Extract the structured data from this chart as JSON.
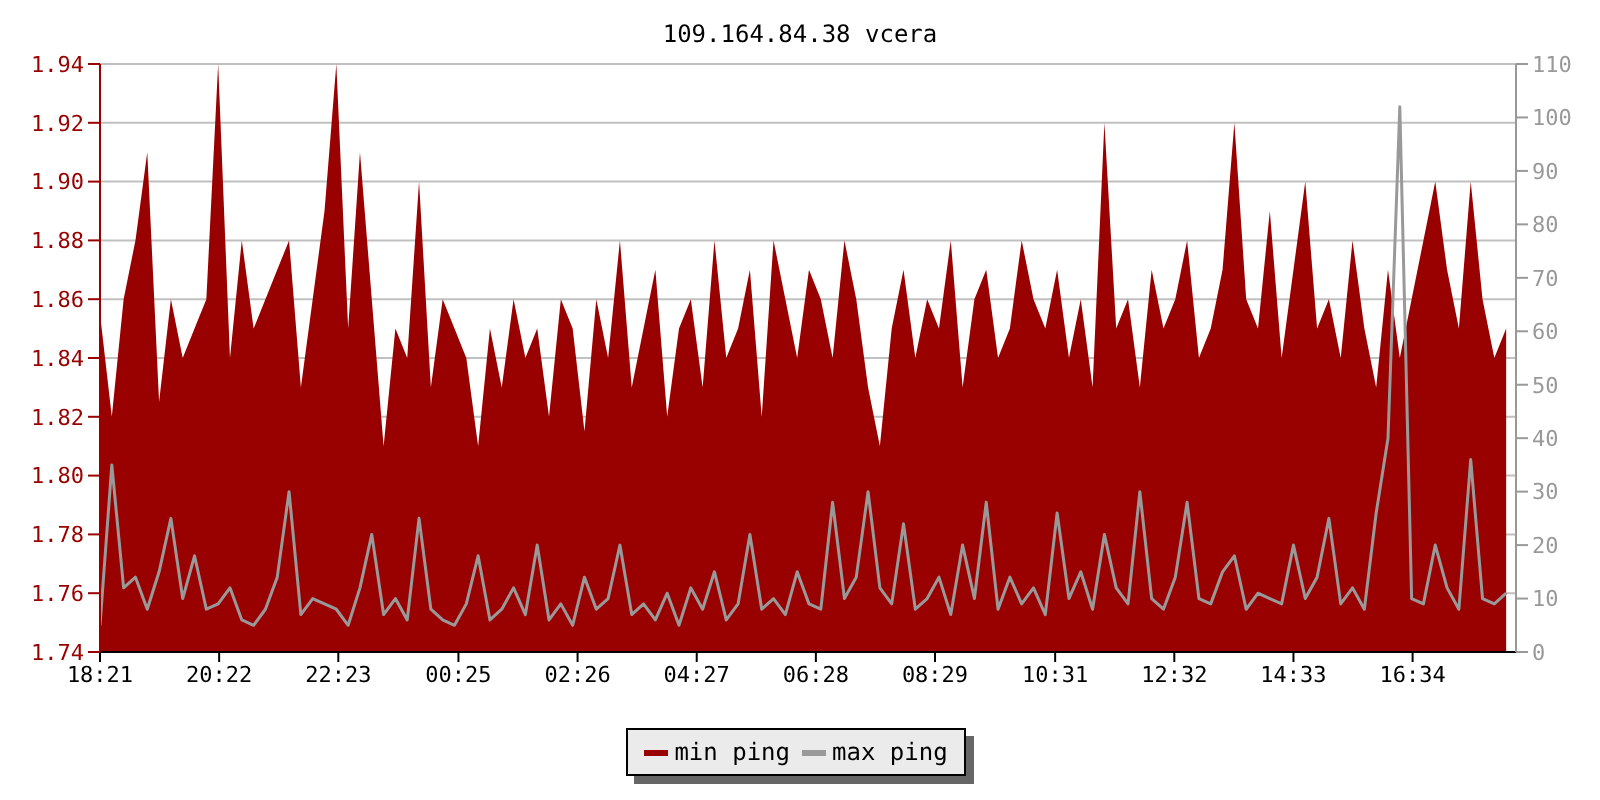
{
  "chart_data": {
    "type": "area",
    "title": "109.164.84.38 vcera",
    "x": [
      "--01-01T18:21",
      "--01-01T18:33",
      "--01-01T18:45",
      "--01-01T18:57",
      "--01-01T19:09",
      "--01-01T19:21",
      "--01-01T19:33",
      "--01-01T19:45",
      "--01-01T19:57",
      "--01-01T20:09",
      "--01-01T20:21",
      "--01-01T20:33",
      "--01-01T20:45",
      "--01-01T20:57",
      "--01-01T21:09",
      "--01-01T21:21",
      "--01-01T21:33",
      "--01-01T21:45",
      "--01-01T21:57",
      "--01-01T22:09",
      "--01-01T22:21",
      "--01-01T22:33",
      "--01-01T22:45",
      "--01-01T22:57",
      "--01-01T23:09",
      "--01-01T23:21",
      "--01-01T23:33",
      "--01-01T23:45",
      "--01-01T23:57",
      "--01-02T00:09",
      "--01-02T00:21",
      "--01-02T00:33",
      "--01-02T00:45",
      "--01-02T00:57",
      "--01-02T01:09",
      "--01-02T01:21",
      "--01-02T01:33",
      "--01-02T01:45",
      "--01-02T01:57",
      "--01-02T02:09",
      "--01-02T02:21",
      "--01-02T02:33",
      "--01-02T02:45",
      "--01-02T02:57",
      "--01-02T03:09",
      "--01-02T03:21",
      "--01-02T03:33",
      "--01-02T03:45",
      "--01-02T03:57",
      "--01-02T04:09",
      "--01-02T04:21",
      "--01-02T04:33",
      "--01-02T04:45",
      "--01-02T04:57",
      "--01-02T05:09",
      "--01-02T05:21",
      "--01-02T05:33",
      "--01-02T05:45",
      "--01-02T05:57",
      "--01-02T06:09",
      "--01-02T06:21",
      "--01-02T06:33",
      "--01-02T06:45",
      "--01-02T06:57",
      "--01-02T07:09",
      "--01-02T07:21",
      "--01-02T07:33",
      "--01-02T07:45",
      "--01-02T07:57",
      "--01-02T08:09",
      "--01-02T08:21",
      "--01-02T08:33",
      "--01-02T08:45",
      "--01-02T08:57",
      "--01-02T09:09",
      "--01-02T09:21",
      "--01-02T09:33",
      "--01-02T09:45",
      "--01-02T09:57",
      "--01-02T10:09",
      "--01-02T10:21",
      "--01-02T10:33",
      "--01-02T10:45",
      "--01-02T10:57",
      "--01-02T11:09",
      "--01-02T11:21",
      "--01-02T11:33",
      "--01-02T11:45",
      "--01-02T11:57",
      "--01-02T12:09",
      "--01-02T12:21",
      "--01-02T12:33",
      "--01-02T12:45",
      "--01-02T12:57",
      "--01-02T13:09",
      "--01-02T13:21",
      "--01-02T13:33",
      "--01-02T13:45",
      "--01-02T13:57",
      "--01-02T14:09",
      "--01-02T14:21",
      "--01-02T14:33",
      "--01-02T14:45",
      "--01-02T14:57",
      "--01-02T15:09",
      "--01-02T15:21",
      "--01-02T15:33",
      "--01-02T15:45",
      "--01-02T15:57",
      "--01-02T16:09",
      "--01-02T16:21",
      "--01-02T16:33",
      "--01-02T16:45",
      "--01-02T16:57",
      "--01-02T17:09",
      "--01-02T17:21",
      "--01-02T17:33",
      "--01-02T17:45",
      "--01-02T17:57",
      "--01-02T18:09"
    ],
    "series": [
      {
        "name": "min ping",
        "color": "#990000",
        "values": [
          1.855,
          1.82,
          1.86,
          1.88,
          1.91,
          1.825,
          1.86,
          1.84,
          1.85,
          1.86,
          1.94,
          1.84,
          1.88,
          1.85,
          1.86,
          1.87,
          1.88,
          1.83,
          1.86,
          1.89,
          1.94,
          1.85,
          1.91,
          1.86,
          1.81,
          1.85,
          1.84,
          1.9,
          1.83,
          1.86,
          1.85,
          1.84,
          1.81,
          1.85,
          1.83,
          1.86,
          1.84,
          1.85,
          1.82,
          1.86,
          1.85,
          1.815,
          1.86,
          1.84,
          1.88,
          1.83,
          1.85,
          1.87,
          1.82,
          1.85,
          1.86,
          1.83,
          1.88,
          1.84,
          1.85,
          1.87,
          1.82,
          1.88,
          1.86,
          1.84,
          1.87,
          1.86,
          1.84,
          1.88,
          1.86,
          1.83,
          1.81,
          1.85,
          1.87,
          1.84,
          1.86,
          1.85,
          1.88,
          1.83,
          1.86,
          1.87,
          1.84,
          1.85,
          1.88,
          1.86,
          1.85,
          1.87,
          1.84,
          1.86,
          1.83,
          1.92,
          1.85,
          1.86,
          1.83,
          1.87,
          1.85,
          1.86,
          1.88,
          1.84,
          1.85,
          1.87,
          1.92,
          1.86,
          1.85,
          1.89,
          1.84,
          1.87,
          1.9,
          1.85,
          1.86,
          1.84,
          1.88,
          1.85,
          1.83,
          1.87,
          1.84,
          1.86,
          1.88,
          1.9,
          1.87,
          1.85,
          1.9,
          1.86,
          1.84,
          1.85
        ]
      },
      {
        "name": "max ping",
        "type": "line",
        "axis": "y2",
        "color": "#999999",
        "values": [
          5,
          35,
          12,
          14,
          8,
          15,
          25,
          10,
          18,
          8,
          9,
          12,
          6,
          5,
          8,
          14,
          30,
          7,
          10,
          9,
          8,
          5,
          12,
          22,
          7,
          10,
          6,
          25,
          8,
          6,
          5,
          9,
          18,
          6,
          8,
          12,
          7,
          20,
          6,
          9,
          5,
          14,
          8,
          10,
          20,
          7,
          9,
          6,
          11,
          5,
          12,
          8,
          15,
          6,
          9,
          22,
          8,
          10,
          7,
          15,
          9,
          8,
          28,
          10,
          14,
          30,
          12,
          9,
          24,
          8,
          10,
          14,
          7,
          20,
          10,
          28,
          8,
          14,
          9,
          12,
          7,
          26,
          10,
          15,
          8,
          22,
          12,
          9,
          30,
          10,
          8,
          14,
          28,
          10,
          9,
          15,
          18,
          8,
          11,
          10,
          9,
          20,
          10,
          14,
          25,
          9,
          12,
          8,
          26,
          40,
          102,
          10,
          9,
          20,
          12,
          8,
          36,
          10,
          9,
          11
        ]
      }
    ],
    "xlim": [
      "--01-01T18:21",
      "--01-02T18:19"
    ],
    "xticks": [
      {
        "value": "--01-01T18:21",
        "label": "18:21"
      },
      {
        "value": "--01-01T20:22",
        "label": "20:22"
      },
      {
        "value": "--01-01T22:23",
        "label": "22:23"
      },
      {
        "value": "--01-02T00:25",
        "label": "00:25"
      },
      {
        "value": "--01-02T02:26",
        "label": "02:26"
      },
      {
        "value": "--01-02T04:27",
        "label": "04:27"
      },
      {
        "value": "--01-02T06:28",
        "label": "06:28"
      },
      {
        "value": "--01-02T08:29",
        "label": "08:29"
      },
      {
        "value": "--01-02T10:31",
        "label": "10:31"
      },
      {
        "value": "--01-02T12:32",
        "label": "12:32"
      },
      {
        "value": "--01-02T14:33",
        "label": "14:33"
      },
      {
        "value": "--01-02T16:34",
        "label": "16:34"
      }
    ],
    "ylim": [
      1.74,
      1.94
    ],
    "yticks": [
      1.74,
      1.76,
      1.78,
      {
        "value": 1.8,
        "label": "1.80"
      },
      1.82,
      1.84,
      1.86,
      1.88,
      {
        "value": 1.9,
        "label": "1.90"
      },
      1.92,
      1.94
    ],
    "y2lim": [
      0,
      110
    ],
    "y2ticks": [
      0,
      10,
      20,
      30,
      40,
      50,
      60,
      70,
      80,
      90,
      100,
      110
    ],
    "grid": "y",
    "legend": "bottom"
  }
}
